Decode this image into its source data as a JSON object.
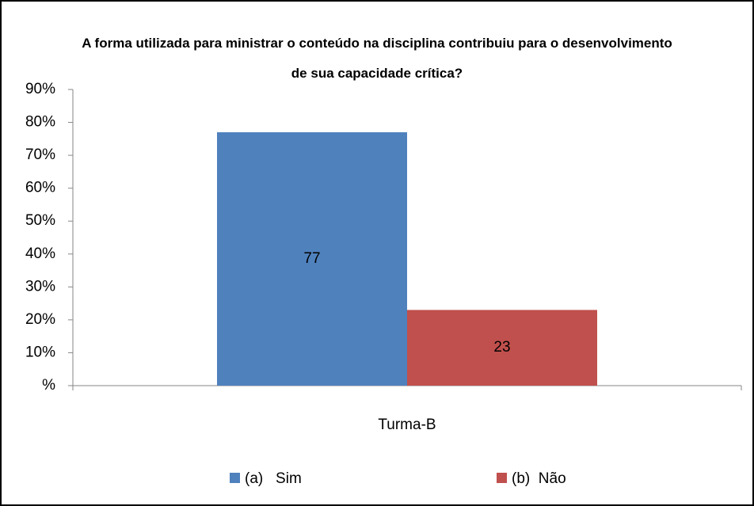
{
  "chart_data": {
    "type": "bar",
    "title": "A forma utilizada para ministrar o conteúdo na disciplina contribuiu para o desenvolvimento de sua capacidade crítica?",
    "categories": [
      "Turma-B"
    ],
    "series": [
      {
        "name": "(a)   Sim",
        "color": "#4f81bd",
        "values": [
          77
        ]
      },
      {
        "name": "(b)  Não",
        "color": "#c0504d",
        "values": [
          23
        ]
      }
    ],
    "ylim": [
      0,
      90
    ],
    "yticks": [
      {
        "value": 0,
        "label": "%"
      },
      {
        "value": 10,
        "label": "10%"
      },
      {
        "value": 20,
        "label": "20%"
      },
      {
        "value": 30,
        "label": "30%"
      },
      {
        "value": 40,
        "label": "40%"
      },
      {
        "value": 50,
        "label": "50%"
      },
      {
        "value": 60,
        "label": "60%"
      },
      {
        "value": 70,
        "label": "70%"
      },
      {
        "value": 80,
        "label": "80%"
      },
      {
        "value": 90,
        "label": "90%"
      }
    ],
    "grid": false,
    "legend": "bottom"
  }
}
